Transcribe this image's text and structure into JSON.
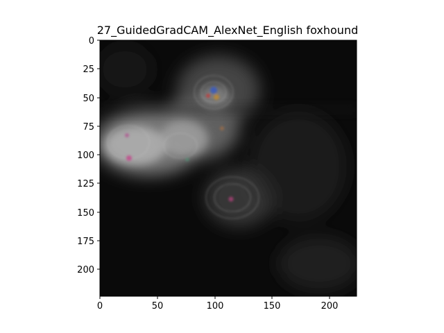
{
  "title": "27_GuidedGradCAM_AlexNet_English foxhound",
  "image": {
    "description_kind": "saliency-map",
    "width_units": 224,
    "height_units": 224
  },
  "axes": {
    "x_ticks": [
      "0",
      "50",
      "100",
      "150",
      "200"
    ],
    "y_ticks": [
      "0",
      "25",
      "50",
      "75",
      "100",
      "125",
      "150",
      "175",
      "200"
    ],
    "x_range": [
      0,
      224
    ],
    "y_range": [
      0,
      224
    ],
    "y_inverted": true
  },
  "colors": {
    "background": "#000000",
    "glow": "#bdbdbd",
    "frame": "#000000"
  }
}
